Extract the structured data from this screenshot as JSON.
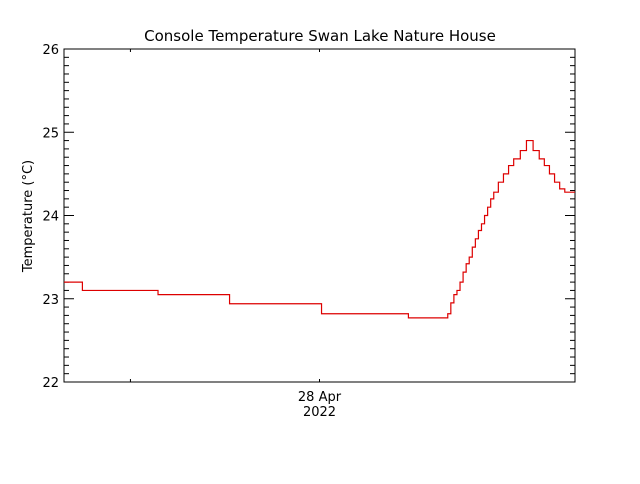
{
  "chart_data": {
    "type": "line",
    "title": "Console Temperature Swan Lake Nature House",
    "xlabel": "",
    "ylabel": "Temperature (°C)",
    "ylim": [
      22,
      26
    ],
    "y_ticks": [
      "22",
      "23",
      "24",
      "25",
      "26"
    ],
    "x_tick_labels": [
      {
        "x": 0.13,
        "label": ""
      },
      {
        "x": 0.5,
        "label": "28 Apr",
        "sublabel": "2022"
      }
    ],
    "xlim": [
      0,
      1
    ],
    "grid": false,
    "line_color": "#dd0000",
    "series": [
      {
        "step": true,
        "x": [
          0.0,
          0.036,
          0.184,
          0.324,
          0.504,
          0.674,
          0.751,
          0.757,
          0.763,
          0.769,
          0.775,
          0.781,
          0.787,
          0.793,
          0.799,
          0.805,
          0.811,
          0.817,
          0.823,
          0.829,
          0.835,
          0.841,
          0.85,
          0.86,
          0.87,
          0.88,
          0.893,
          0.905,
          0.918,
          0.93,
          0.94,
          0.95,
          0.96,
          0.97,
          0.98,
          0.99,
          1.0
        ],
        "y": [
          23.2,
          23.1,
          23.05,
          22.94,
          22.82,
          22.77,
          22.82,
          22.95,
          23.05,
          23.1,
          23.2,
          23.32,
          23.42,
          23.5,
          23.62,
          23.72,
          23.82,
          23.9,
          24.0,
          24.1,
          24.2,
          24.28,
          24.4,
          24.5,
          24.6,
          24.68,
          24.78,
          24.9,
          24.78,
          24.68,
          24.6,
          24.5,
          24.4,
          24.32,
          24.28,
          24.28,
          24.28
        ]
      }
    ]
  }
}
